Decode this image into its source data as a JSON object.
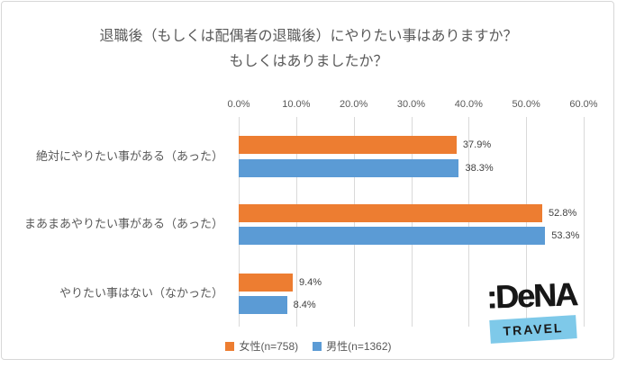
{
  "title": {
    "line1": "退職後（もしくは配偶者の退職後）にやりたい事はありますか？",
    "line2": "もしくはありましたか？"
  },
  "chart_data": {
    "type": "bar",
    "orientation": "horizontal",
    "title": "退職後（もしくは配偶者の退職後）にやりたい事はありますか？もしくはありましたか？",
    "categories": [
      "絶対にやりたい事がある（あった）",
      "まあまあやりたい事がある（あった）",
      "やりたい事はない（なかった）"
    ],
    "series": [
      {
        "name": "女性(n=758)",
        "color": "#ED7D31",
        "values": [
          37.9,
          52.8,
          9.4
        ],
        "labels": [
          "37.9%",
          "52.8%",
          "9.4%"
        ]
      },
      {
        "name": "男性(n=1362)",
        "color": "#5B9BD5",
        "values": [
          38.3,
          53.3,
          8.4
        ],
        "labels": [
          "38.3%",
          "53.3%",
          "8.4%"
        ]
      }
    ],
    "x_axis": {
      "ticks": [
        "0.0%",
        "10.0%",
        "20.0%",
        "30.0%",
        "40.0%",
        "50.0%",
        "60.0%"
      ],
      "min": 0,
      "max": 60,
      "unit": "%"
    },
    "legend_position": "bottom",
    "grid": true,
    "grid_color": "#D9D9D9"
  },
  "logo": {
    "brand": ":DeNA",
    "sub": "TRAVEL",
    "banner_color": "#7EC9E9"
  }
}
